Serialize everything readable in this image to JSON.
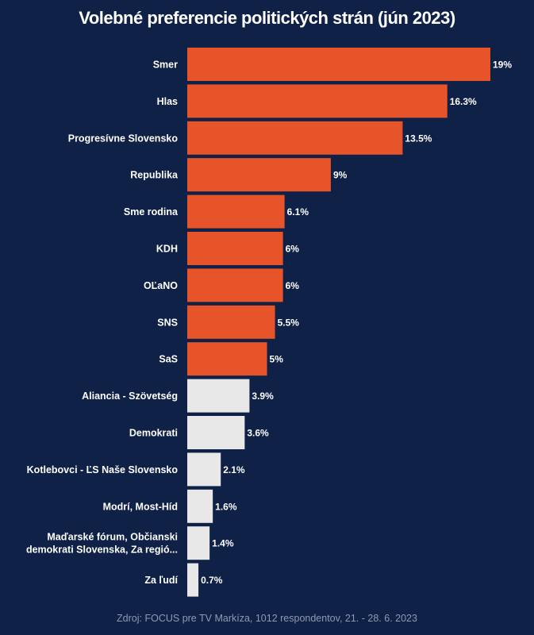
{
  "chart_data": {
    "type": "bar",
    "orientation": "horizontal",
    "title": "Volebné preferencie politických strán (jún 2023)",
    "source": "Zdroj: FOCUS pre TV Markíza, 1012 respondentov, 21. - 28. 6. 2023",
    "xlim": [
      0,
      19
    ],
    "colors": {
      "above_threshold": "#e8542a",
      "below_threshold": "#e8e8e8",
      "background": "#0f2147"
    },
    "categories": [
      [
        "Smer"
      ],
      [
        "Hlas"
      ],
      [
        "Progresívne Slovensko"
      ],
      [
        "Republika"
      ],
      [
        "Sme rodina"
      ],
      [
        "KDH"
      ],
      [
        "OĽaNO"
      ],
      [
        "SNS"
      ],
      [
        "SaS"
      ],
      [
        "Aliancia - Szövetség"
      ],
      [
        "Demokrati"
      ],
      [
        "Kotlebovci - ĽS Naše Slovensko"
      ],
      [
        "Modrí, Most-Híd"
      ],
      [
        "Maďarské fórum, Občianski",
        "demokrati Slovenska, Za regió..."
      ],
      [
        "Za ľudí"
      ]
    ],
    "values": [
      19,
      16.3,
      13.5,
      9,
      6.1,
      6,
      6,
      5.5,
      5,
      3.9,
      3.6,
      2.1,
      1.6,
      1.4,
      0.7
    ],
    "value_labels": [
      "19%",
      "16.3%",
      "13.5%",
      "9%",
      "6.1%",
      "6%",
      "6%",
      "5.5%",
      "5%",
      "3.9%",
      "3.6%",
      "2.1%",
      "1.6%",
      "1.4%",
      "0.7%"
    ],
    "highlighted": [
      true,
      true,
      true,
      true,
      true,
      true,
      true,
      true,
      true,
      false,
      false,
      false,
      false,
      false,
      false
    ]
  }
}
